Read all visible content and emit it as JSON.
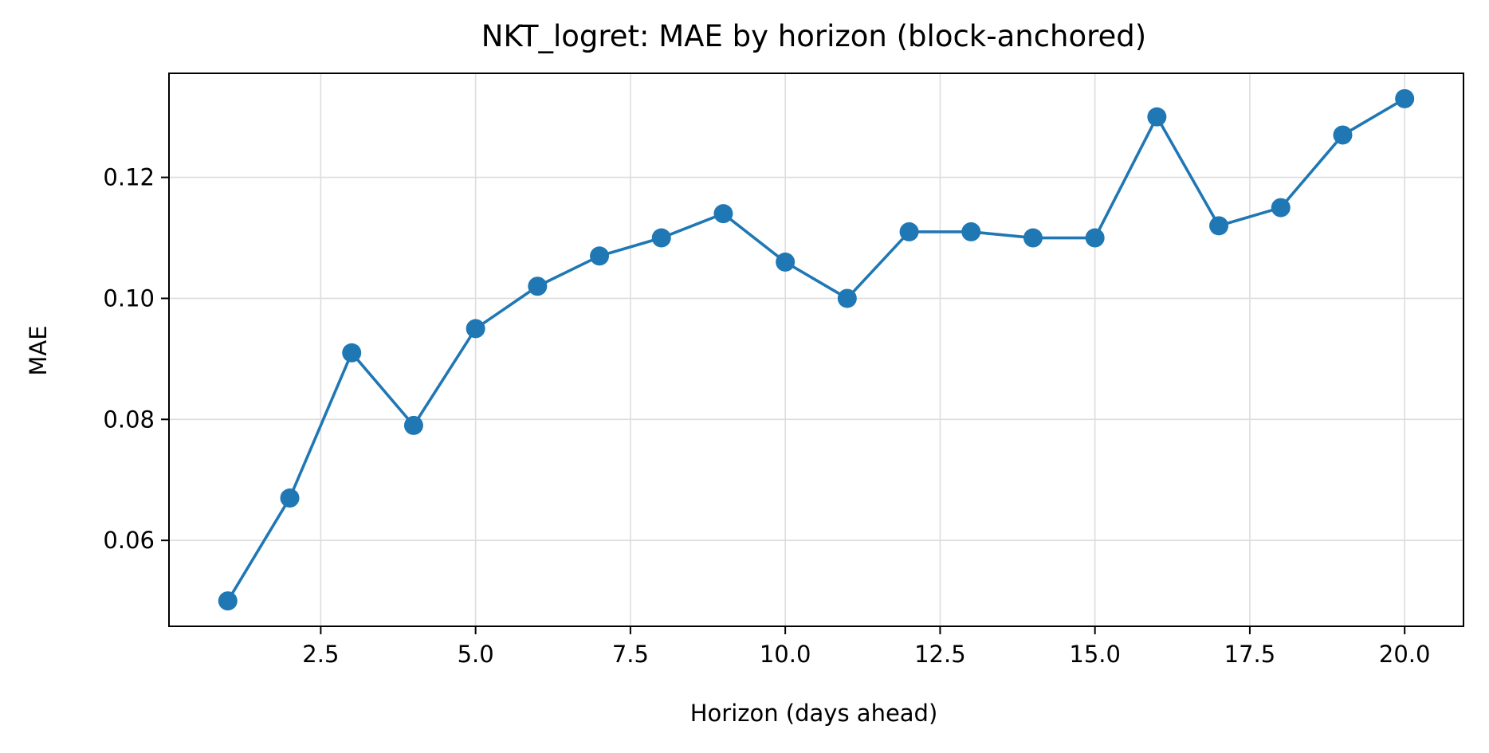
{
  "chart_data": {
    "type": "line",
    "title": "NKT_logret: MAE by horizon (block-anchored)",
    "xlabel": "Horizon (days ahead)",
    "ylabel": "MAE",
    "xlim": [
      0.05,
      20.95
    ],
    "ylim": [
      0.0458,
      0.1372
    ],
    "xticks": [
      2.5,
      5.0,
      7.5,
      10.0,
      12.5,
      15.0,
      17.5,
      20.0
    ],
    "xtick_labels": [
      "2.5",
      "5.0",
      "7.5",
      "10.0",
      "12.5",
      "15.0",
      "17.5",
      "20.0"
    ],
    "yticks": [
      0.06,
      0.08,
      0.1,
      0.12
    ],
    "ytick_labels": [
      "0.06",
      "0.08",
      "0.10",
      "0.12"
    ],
    "grid": true,
    "series": [
      {
        "color": "#1f77b4",
        "marker": "circle",
        "x": [
          1,
          2,
          3,
          4,
          5,
          6,
          7,
          8,
          9,
          10,
          11,
          12,
          13,
          14,
          15,
          16,
          17,
          18,
          19,
          20
        ],
        "y": [
          0.05,
          0.067,
          0.091,
          0.079,
          0.095,
          0.102,
          0.107,
          0.11,
          0.114,
          0.106,
          0.1,
          0.111,
          0.111,
          0.11,
          0.11,
          0.13,
          0.112,
          0.115,
          0.127,
          0.133
        ]
      }
    ]
  }
}
